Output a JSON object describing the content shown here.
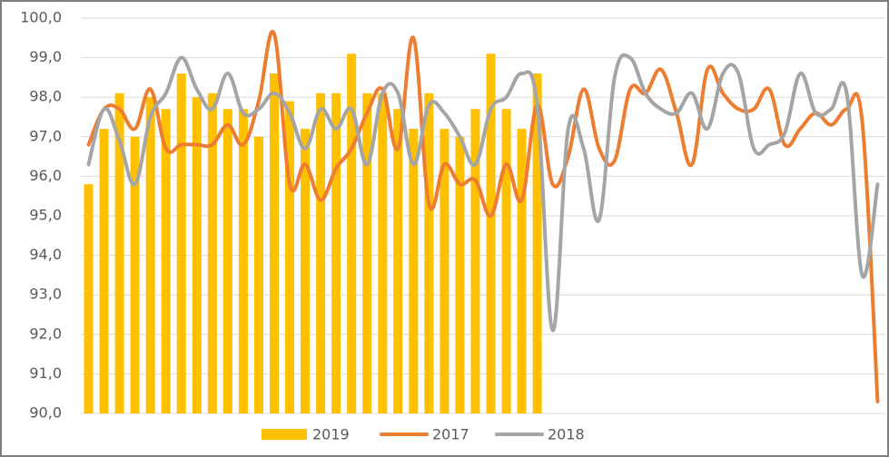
{
  "chart_data": {
    "type": "bar+line",
    "categories": [
      null,
      null,
      null,
      null,
      null,
      null,
      null,
      null,
      null,
      null,
      null,
      null,
      null,
      null,
      null,
      null,
      null,
      null,
      null,
      null,
      null,
      null,
      null,
      null,
      null,
      null,
      null,
      null,
      null,
      null,
      null,
      null,
      null,
      null,
      null,
      null,
      null,
      null,
      null,
      null,
      null,
      null,
      null,
      null,
      null,
      null,
      null,
      null,
      null,
      null,
      null,
      null
    ],
    "ylim": [
      90,
      100
    ],
    "yticks": [
      {
        "value": 90,
        "label": "90,0"
      },
      {
        "value": 91,
        "label": "91,0"
      },
      {
        "value": 92,
        "label": "92,0"
      },
      {
        "value": 93,
        "label": "93,0"
      },
      {
        "value": 94,
        "label": "94,0"
      },
      {
        "value": 95,
        "label": "95,0"
      },
      {
        "value": 96,
        "label": "96,0"
      },
      {
        "value": 97,
        "label": "97,0"
      },
      {
        "value": 98,
        "label": "98,0"
      },
      {
        "value": 99,
        "label": "99,0"
      },
      {
        "value": 100,
        "label": "100,0"
      }
    ],
    "grid": true,
    "legend": "bottom",
    "series": [
      {
        "name": "2019",
        "type": "bar",
        "color": "#FFC000",
        "values": [
          95.8,
          97.2,
          98.1,
          97.0,
          98.0,
          97.7,
          98.6,
          98.0,
          98.1,
          97.7,
          97.7,
          97.0,
          98.6,
          97.9,
          97.2,
          98.1,
          98.1,
          99.1,
          98.1,
          98.1,
          97.7,
          97.2,
          98.1,
          97.2,
          97.0,
          97.7,
          99.1,
          97.7,
          97.2,
          98.6,
          null,
          null,
          null,
          null,
          null,
          null,
          null,
          null,
          null,
          null,
          null,
          null,
          null,
          null,
          null,
          null,
          null,
          null,
          null,
          null,
          null,
          null
        ]
      },
      {
        "name": "2017",
        "type": "line",
        "color": "#ED7D31",
        "values": [
          96.8,
          97.7,
          97.7,
          97.2,
          98.2,
          96.7,
          96.8,
          96.8,
          96.8,
          97.3,
          96.8,
          97.9,
          99.6,
          95.8,
          96.3,
          95.4,
          96.2,
          96.7,
          97.6,
          98.2,
          96.7,
          99.5,
          95.3,
          96.3,
          95.8,
          95.9,
          95.0,
          96.3,
          95.4,
          97.8,
          95.8,
          96.5,
          98.2,
          96.7,
          96.4,
          98.2,
          98.1,
          98.7,
          97.6,
          96.3,
          98.7,
          98.1,
          97.7,
          97.7,
          98.2,
          96.8,
          97.2,
          97.6,
          97.3,
          97.7,
          97.4,
          90.3
        ]
      },
      {
        "name": "2018",
        "type": "line",
        "color": "#A5A5A5",
        "values": [
          96.3,
          97.7,
          96.9,
          95.8,
          97.5,
          98.1,
          99.0,
          98.2,
          97.7,
          98.6,
          97.6,
          97.7,
          98.1,
          97.6,
          96.7,
          97.7,
          97.2,
          97.7,
          96.3,
          98.1,
          98.1,
          96.3,
          97.8,
          97.6,
          97.0,
          96.3,
          97.7,
          98.0,
          98.6,
          97.8,
          92.1,
          97.2,
          96.7,
          94.9,
          98.5,
          99.0,
          98.1,
          97.7,
          97.6,
          98.1,
          97.2,
          98.6,
          98.6,
          96.7,
          96.8,
          97.1,
          98.6,
          97.6,
          97.7,
          98.1,
          93.5,
          95.8
        ]
      }
    ]
  }
}
